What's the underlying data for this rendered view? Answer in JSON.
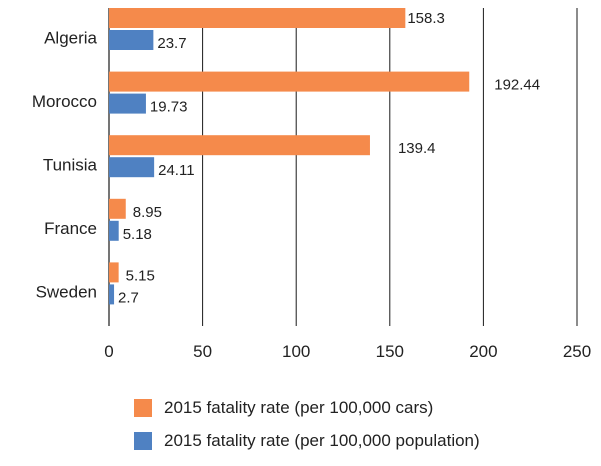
{
  "colors": {
    "cars": "#F58A4B",
    "population": "#4F81C2",
    "grid": "#1a1a1a"
  },
  "chart_data": {
    "type": "bar",
    "orientation": "horizontal",
    "categories": [
      "Algeria",
      "Morocco",
      "Tunisia",
      "France",
      "Sweden"
    ],
    "series": [
      {
        "name": "2015 fatality rate (per 100,000 cars)",
        "values": [
          158.3,
          192.44,
          139.4,
          8.95,
          5.15
        ]
      },
      {
        "name": "2015 fatality rate (per 100,000 population)",
        "values": [
          23.7,
          19.73,
          24.11,
          5.18,
          2.7
        ]
      }
    ],
    "value_labels": [
      [
        "158.3",
        "192.44",
        "139.4",
        "8.95",
        "5.15"
      ],
      [
        "23.7",
        "19.73",
        "24.11",
        "5.18",
        "2.7"
      ]
    ],
    "xlim": [
      0,
      250
    ],
    "xticks": [
      "0",
      "50",
      "100",
      "150",
      "200",
      "250"
    ],
    "grid": "vertical",
    "legend_position": "bottom",
    "title": "",
    "xlabel": "",
    "ylabel": ""
  }
}
